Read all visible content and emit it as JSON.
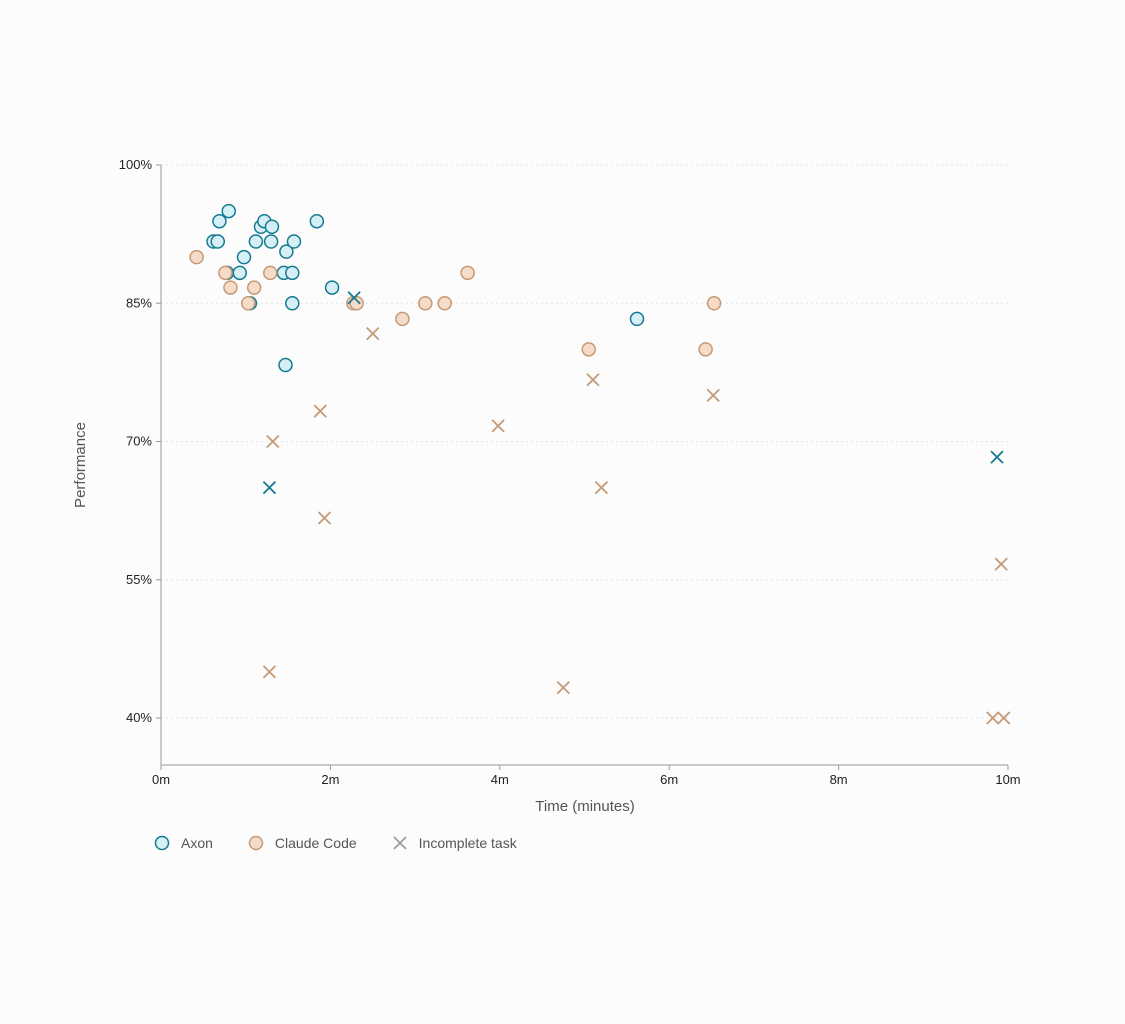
{
  "chart_data": {
    "type": "scatter",
    "title": "",
    "xlabel": "Time (minutes)",
    "ylabel": "Performance",
    "xlim": [
      0,
      10
    ],
    "ylim": [
      35,
      100
    ],
    "x_ticks": [
      0,
      2,
      4,
      6,
      8,
      10
    ],
    "x_tick_labels": [
      "0m",
      "2m",
      "4m",
      "6m",
      "8m",
      "10m"
    ],
    "y_ticks": [
      40,
      55,
      70,
      85,
      100
    ],
    "y_tick_labels": [
      "40%",
      "55%",
      "70%",
      "85%",
      "100%"
    ],
    "grid": "horizontal dotted",
    "legend_position": "bottom-left",
    "colors": {
      "axon_stroke": "#147a92",
      "axon_fill": "#d5eff4",
      "claude_stroke": "#c49a76",
      "claude_fill": "#f6dcc8",
      "incomplete_legend": "#9a9a9a"
    },
    "legend": {
      "axon": "Axon",
      "claude": "Claude Code",
      "incomplete": "Incomplete task"
    },
    "series": [
      {
        "name": "Axon",
        "marker": "circle",
        "points": [
          [
            0.62,
            91.7
          ],
          [
            0.67,
            91.7
          ],
          [
            0.69,
            93.9
          ],
          [
            0.78,
            88.3
          ],
          [
            0.8,
            95.0
          ],
          [
            0.93,
            88.3
          ],
          [
            0.98,
            90.0
          ],
          [
            1.05,
            85.0
          ],
          [
            1.12,
            91.7
          ],
          [
            1.18,
            93.3
          ],
          [
            1.22,
            93.9
          ],
          [
            1.3,
            91.7
          ],
          [
            1.31,
            93.3
          ],
          [
            1.45,
            88.3
          ],
          [
            1.48,
            90.6
          ],
          [
            1.55,
            85.0
          ],
          [
            1.55,
            88.3
          ],
          [
            1.57,
            91.7
          ],
          [
            1.47,
            78.3
          ],
          [
            1.84,
            93.9
          ],
          [
            2.02,
            86.7
          ],
          [
            5.62,
            83.3
          ]
        ]
      },
      {
        "name": "Claude Code",
        "marker": "circle",
        "points": [
          [
            0.42,
            90.0
          ],
          [
            0.76,
            88.3
          ],
          [
            0.82,
            86.7
          ],
          [
            1.03,
            85.0
          ],
          [
            1.1,
            86.7
          ],
          [
            1.29,
            88.3
          ],
          [
            2.27,
            85.0
          ],
          [
            2.31,
            85.0
          ],
          [
            2.85,
            83.3
          ],
          [
            3.12,
            85.0
          ],
          [
            3.35,
            85.0
          ],
          [
            3.62,
            88.3
          ],
          [
            5.05,
            80.0
          ],
          [
            6.43,
            80.0
          ],
          [
            6.53,
            85.0
          ]
        ]
      },
      {
        "name": "Axon",
        "marker": "x",
        "points": [
          [
            1.28,
            65.0
          ],
          [
            2.28,
            85.6
          ],
          [
            9.87,
            68.3
          ]
        ]
      },
      {
        "name": "Claude Code",
        "marker": "x",
        "points": [
          [
            1.28,
            45.0
          ],
          [
            1.32,
            70.0
          ],
          [
            1.88,
            73.3
          ],
          [
            1.93,
            61.7
          ],
          [
            2.5,
            81.7
          ],
          [
            3.98,
            71.7
          ],
          [
            4.75,
            43.3
          ],
          [
            5.1,
            76.7
          ],
          [
            5.2,
            65.0
          ],
          [
            6.52,
            75.0
          ],
          [
            9.82,
            40.0
          ],
          [
            9.92,
            56.7
          ],
          [
            9.95,
            40.0
          ]
        ]
      }
    ]
  }
}
